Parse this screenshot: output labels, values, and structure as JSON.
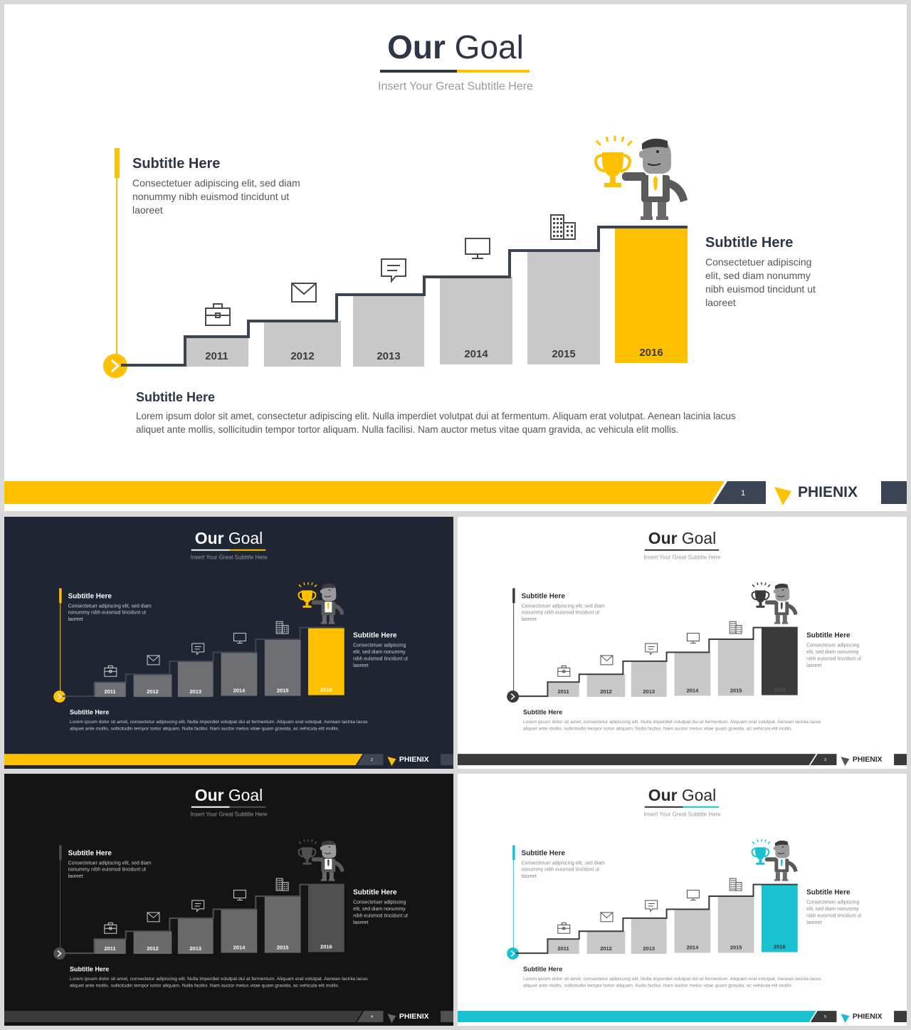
{
  "title": {
    "bold": "Our",
    "rest": " Goal"
  },
  "subtitle": "Insert  Your Great Subtitle Here",
  "blocks": {
    "top_left": {
      "heading": "Subtitle Here",
      "lines": [
        "Consectetuer adipiscing elit, sed diam",
        "nonummy nibh euismod tincidunt ut",
        "laoreet"
      ]
    },
    "right": {
      "heading": "Subtitle Here",
      "lines": [
        "Consectetuer adipiscing",
        "elit, sed diam nonummy",
        "nibh euismod tincidunt ut",
        "laoreet"
      ]
    },
    "bottom": {
      "heading": "Subtitle Here",
      "lines": [
        "Lorem ipsum dolor sit amet, consectetur adipiscing elit. Nulla imperdiet volutpat dui at fermentum. Aliquam erat volutpat. Aenean lacinia lacus",
        "aliquet ante mollis, sollicitudin tempor tortor aliquam. Nulla facilisi. Nam auctor metus vitae quam gravida, ac vehicula elit mollis."
      ]
    }
  },
  "steps": [
    {
      "year": "2011",
      "icon": "briefcase-icon"
    },
    {
      "year": "2012",
      "icon": "envelope-icon"
    },
    {
      "year": "2013",
      "icon": "chat-icon"
    },
    {
      "year": "2014",
      "icon": "monitor-icon"
    },
    {
      "year": "2015",
      "icon": "building-icon"
    },
    {
      "year": "2016",
      "icon": "trophy-businessman-icon"
    }
  ],
  "brand": "PHIENIX",
  "variants": [
    {
      "id": "slide-main",
      "page": "1",
      "bg": "#ffffff",
      "accent": "#ffc000",
      "dark": "#3b4453",
      "bar": "#c8c8c8",
      "title_color": "#2c3646",
      "text": "#555555",
      "label": "#3b3b3b",
      "hi_label": "#3b3b3b",
      "footer_band": "#ffc000",
      "footer_box": "#3b4453",
      "brand_color": "#2c3646",
      "logo": "#ffc000"
    },
    {
      "id": "slide-s2",
      "page": "2",
      "bg": "#1f2533",
      "accent": "#ffc000",
      "dark": "#3e4553",
      "bar": "#6d6e72",
      "title_color": "#ffffff",
      "text": "#c9ccd2",
      "label": "#ffffff",
      "hi_label": "#ffffff",
      "footer_band": "#ffc000",
      "footer_box": "#3e4553",
      "brand_color": "#ffffff",
      "logo": "#ffc000"
    },
    {
      "id": "slide-s3",
      "page": "3",
      "bg": "#ffffff",
      "accent": "#3a3a3a",
      "dark": "#3a3a3a",
      "bar": "#c8c8c8",
      "title_color": "#2b2b2b",
      "text": "#888888",
      "label": "#333333",
      "hi_label": "#555555",
      "footer_band": "#3a3a3a",
      "footer_box": "#3a3a3a",
      "brand_color": "#2b2b2b",
      "logo": "#555555"
    },
    {
      "id": "slide-s4",
      "page": "4",
      "bg": "#141414",
      "accent": "#505050",
      "dark": "#505050",
      "bar": "#6a6a6a",
      "title_color": "#ffffff",
      "text": "#c9c9c9",
      "label": "#ffffff",
      "hi_label": "#ffffff",
      "footer_band": "#3a3a3a",
      "footer_box": "#505050",
      "brand_color": "#ffffff",
      "logo": "#666666"
    },
    {
      "id": "slide-s5",
      "page": "5",
      "bg": "#ffffff",
      "accent": "#17c1d0",
      "dark": "#3a3a3a",
      "bar": "#c8c8c8",
      "title_color": "#2b2b2b",
      "text": "#888888",
      "label": "#333333",
      "hi_label": "#333333",
      "footer_band": "#17c1d0",
      "footer_box": "#3a3a3a",
      "brand_color": "#2b2b2b",
      "logo": "#17c1d0"
    }
  ]
}
